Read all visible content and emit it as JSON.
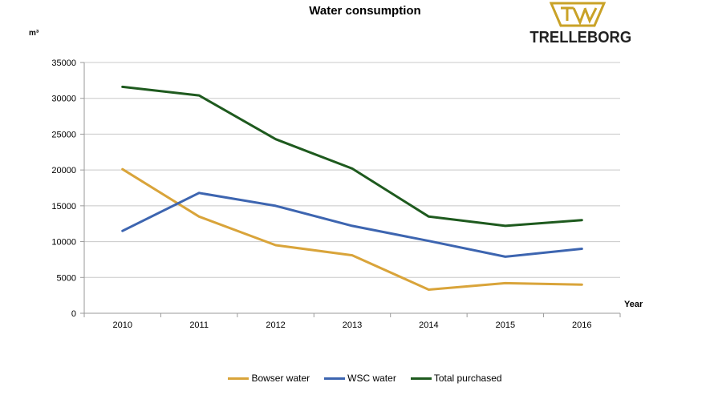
{
  "chart_data": {
    "type": "line",
    "title": "Water consumption",
    "ylabel": "m³",
    "xlabel": "Year",
    "categories": [
      "2010",
      "2011",
      "2012",
      "2013",
      "2014",
      "2015",
      "2016"
    ],
    "ylim": [
      0,
      35000
    ],
    "yticks": [
      "0",
      "5000",
      "10000",
      "15000",
      "20000",
      "25000",
      "30000",
      "35000"
    ],
    "grid": true,
    "legend_position": "bottom",
    "series": [
      {
        "name": "Bowser water",
        "color": "#d9a43a",
        "values": [
          20100,
          13500,
          9500,
          8100,
          3300,
          4200,
          4000
        ]
      },
      {
        "name": "WSC water",
        "color": "#3d65b0",
        "values": [
          11500,
          16800,
          15000,
          12200,
          10100,
          7900,
          9000
        ]
      },
      {
        "name": "Total purchased",
        "color": "#1e5a1e",
        "values": [
          31600,
          30400,
          24300,
          20200,
          13500,
          12200,
          13000
        ]
      }
    ]
  },
  "logo": {
    "text": "TRELLEBORG",
    "color": "#c9a227"
  }
}
